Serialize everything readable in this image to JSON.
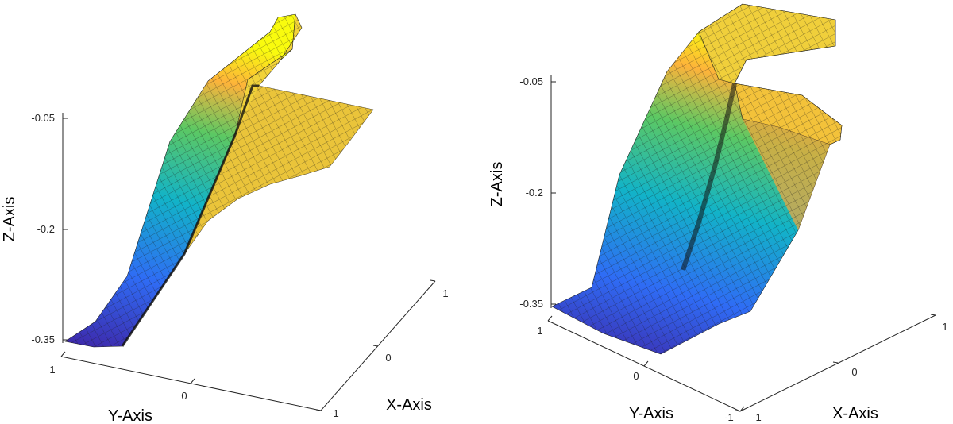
{
  "chart_data": [
    {
      "type": "surface",
      "title": "",
      "xlabel": "X-Axis",
      "ylabel": "Y-Axis",
      "zlabel": "Z-Axis",
      "x_ticks": [
        "-1",
        "0",
        "1"
      ],
      "y_ticks": [
        "1",
        "0"
      ],
      "z_ticks": [
        "-0.05",
        "-0.2",
        "-0.35"
      ],
      "xlim": [
        -1,
        1
      ],
      "ylim": [
        -1,
        1
      ],
      "zlim": [
        -0.35,
        0
      ],
      "colormap": [
        "#3e26a8",
        "#2f6cf5",
        "#12b3c8",
        "#5cc863",
        "#fdb33a",
        "#f9fb0e"
      ],
      "grid": "off",
      "surface_shape": "folded ramp rising from -0.35 to about 0 with a sharp fold along the middle"
    },
    {
      "type": "surface",
      "title": "",
      "xlabel": "X-Axis",
      "ylabel": "Y-Axis",
      "zlabel": "Z-Axis",
      "x_ticks": [
        "-1",
        "0",
        "1"
      ],
      "y_ticks": [
        "1",
        "0",
        "-1"
      ],
      "z_ticks": [
        "-0.05",
        "-0.2",
        "-0.35"
      ],
      "xlim": [
        -1,
        1
      ],
      "ylim": [
        -1,
        1
      ],
      "zlim": [
        -0.35,
        0
      ],
      "colormap": [
        "#3e26a8",
        "#2f6cf5",
        "#12b3c8",
        "#5cc863",
        "#fdb33a",
        "#f9fb0e"
      ],
      "grid": "off",
      "surface_shape": "folded ramp rising from -0.35 to about 0 with a sharp fold along the middle"
    }
  ]
}
